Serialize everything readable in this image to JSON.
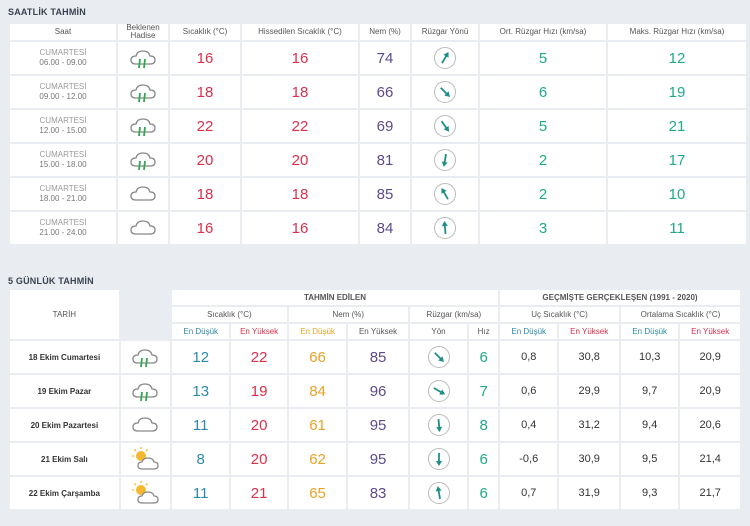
{
  "hourly": {
    "title": "SAATLİK TAHMİN",
    "headers": {
      "time": "Saat",
      "event_line1": "Beklenen",
      "event_line2": "Hadise",
      "temp": "Sıcaklık (°C)",
      "feels": "Hissedilen Sıcaklık (°C)",
      "humidity": "Nem (%)",
      "wind_dir": "Rüzgar Yönü",
      "wind_avg": "Ort. Rüzgar Hızı (km/sa)",
      "wind_max": "Maks. Rüzgar Hızı (km/sa)"
    },
    "rows": [
      {
        "day": "CUMARTESİ",
        "range": "06.00 - 09.00",
        "icon": "cloud-rain-icon",
        "temp": "16",
        "feels": "16",
        "humidity": "74",
        "dir": 30,
        "avg": "5",
        "max": "12"
      },
      {
        "day": "CUMARTESİ",
        "range": "09.00 - 12.00",
        "icon": "cloud-rain-icon",
        "temp": "18",
        "feels": "18",
        "humidity": "66",
        "dir": 135,
        "avg": "6",
        "max": "19"
      },
      {
        "day": "CUMARTESİ",
        "range": "12.00 - 15.00",
        "icon": "cloud-rain-icon",
        "temp": "22",
        "feels": "22",
        "humidity": "69",
        "dir": 145,
        "avg": "5",
        "max": "21"
      },
      {
        "day": "CUMARTESİ",
        "range": "15.00 - 18.00",
        "icon": "cloud-rain-icon",
        "temp": "20",
        "feels": "20",
        "humidity": "81",
        "dir": 190,
        "avg": "2",
        "max": "17"
      },
      {
        "day": "CUMARTESİ",
        "range": "18.00 - 21.00",
        "icon": "cloud-icon",
        "temp": "18",
        "feels": "18",
        "humidity": "85",
        "dir": 330,
        "avg": "2",
        "max": "10"
      },
      {
        "day": "CUMARTESİ",
        "range": "21.00 - 24.00",
        "icon": "cloud-icon",
        "temp": "16",
        "feels": "16",
        "humidity": "84",
        "dir": 355,
        "avg": "3",
        "max": "11"
      }
    ]
  },
  "daily": {
    "title": "5 GÜNLÜK TAHMİN",
    "headers": {
      "date": "TARİH",
      "event": "Hadise",
      "forecast_group": "TAHMİN EDİLEN",
      "history_group": "GEÇMİŞTE GERÇEKLEŞEN (1991 - 2020)",
      "temp": "Sıcaklık (°C)",
      "humidity": "Nem (%)",
      "wind": "Rüzgar (km/sa)",
      "extreme": "Uç Sıcaklık (°C)",
      "average": "Ortalama Sıcaklık (°C)",
      "low": "En Düşük",
      "high": "En Yüksek",
      "direction": "Yön",
      "speed": "Hız"
    },
    "rows": [
      {
        "date": "18 Ekim Cumartesi",
        "icon": "cloud-rain-icon",
        "tmin": "12",
        "tmax": "22",
        "hmin": "66",
        "hmax": "85",
        "dir": 135,
        "speed": "6",
        "emin": "0,8",
        "emax": "30,8",
        "amin": "10,3",
        "amax": "20,9"
      },
      {
        "date": "19 Ekim Pazar",
        "icon": "cloud-rain-icon",
        "tmin": "13",
        "tmax": "19",
        "hmin": "84",
        "hmax": "96",
        "dir": 120,
        "speed": "7",
        "emin": "0,6",
        "emax": "29,9",
        "amin": "9,7",
        "amax": "20,9"
      },
      {
        "date": "20 Ekim Pazartesi",
        "icon": "cloud-icon",
        "tmin": "11",
        "tmax": "20",
        "hmin": "61",
        "hmax": "95",
        "dir": 175,
        "speed": "8",
        "emin": "0,4",
        "emax": "31,2",
        "amin": "9,4",
        "amax": "20,6"
      },
      {
        "date": "21 Ekim Salı",
        "icon": "partly-sunny-icon",
        "tmin": "8",
        "tmax": "20",
        "hmin": "62",
        "hmax": "95",
        "dir": 180,
        "speed": "6",
        "emin": "-0,6",
        "emax": "30,9",
        "amin": "9,5",
        "amax": "21,4"
      },
      {
        "date": "22 Ekim Çarşamba",
        "icon": "partly-sunny-icon",
        "tmin": "11",
        "tmax": "21",
        "hmin": "65",
        "hmax": "83",
        "dir": 350,
        "speed": "6",
        "emin": "0,7",
        "emax": "31,9",
        "amin": "9,3",
        "amax": "21,7"
      }
    ]
  },
  "colors": {
    "teal": "#1ea98a",
    "red": "#d9304c",
    "purple": "#5d4a8c",
    "blue": "#2c8aa8",
    "orange": "#e8a224"
  }
}
